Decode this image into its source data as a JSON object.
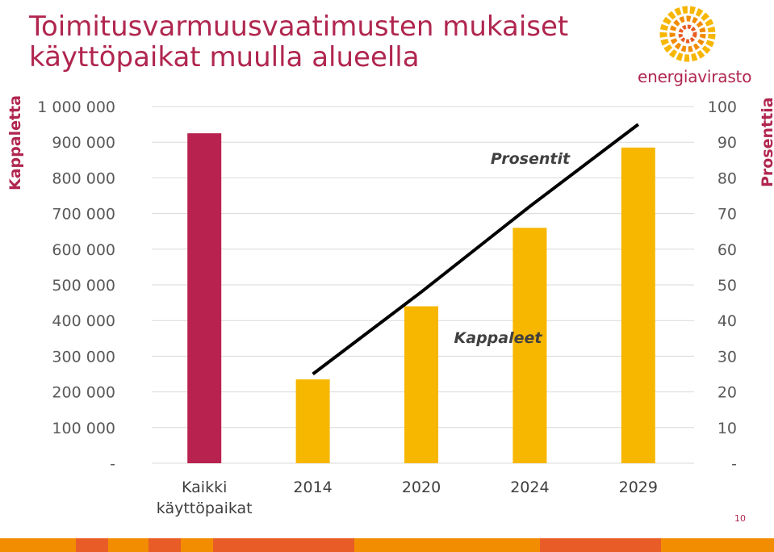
{
  "header": {
    "title_line1": "Toimitusvarmuusvaatimusten mukaiset",
    "title_line2": "käyttöpaikat muulla alueella",
    "logo_text": "energiavirasto",
    "page_number": "10"
  },
  "chart_data": {
    "type": "bar",
    "categories": [
      "Kaikki käyttöpaikat",
      "2014",
      "2020",
      "2024",
      "2029"
    ],
    "category_lines": [
      [
        "Kaikki",
        "käyttöpaikat"
      ],
      [
        "2014"
      ],
      [
        "2020"
      ],
      [
        "2024"
      ],
      [
        "2029"
      ]
    ],
    "series": [
      {
        "name": "Kappaleet",
        "type": "bar",
        "axis": "left",
        "values": [
          925000,
          235000,
          440000,
          660000,
          885000
        ],
        "colors": [
          "#b8224f",
          "#f7b600",
          "#f7b600",
          "#f7b600",
          "#f7b600"
        ]
      },
      {
        "name": "Prosentit",
        "type": "line",
        "axis": "right",
        "values": [
          null,
          25,
          48,
          72,
          95
        ],
        "color": "#000000"
      }
    ],
    "ylabel_left": "Kappaletta",
    "ylabel_right": "Prosenttia",
    "ylim_left": [
      0,
      1000000
    ],
    "ylim_right": [
      0,
      100
    ],
    "left_ticks": [
      "-",
      "100 000",
      "200 000",
      "300 000",
      "400 000",
      "500 000",
      "600 000",
      "700 000",
      "800 000",
      "900 000",
      "1 000 000"
    ],
    "right_ticks": [
      "-",
      "10",
      "20",
      "30",
      "40",
      "50",
      "60",
      "70",
      "80",
      "90",
      "100"
    ],
    "grid": true,
    "annotations": [
      {
        "text": "Prosentit",
        "series": "Prosentit"
      },
      {
        "text": "Kappaleet",
        "series": "Kappaleet"
      }
    ]
  },
  "footer": {
    "colors": [
      "#f28c00",
      "#e85d27",
      "#f28c00",
      "#e85d27",
      "#f28c00",
      "#e85d27",
      "#f28c00",
      "#e85d27",
      "#f28c00"
    ]
  }
}
